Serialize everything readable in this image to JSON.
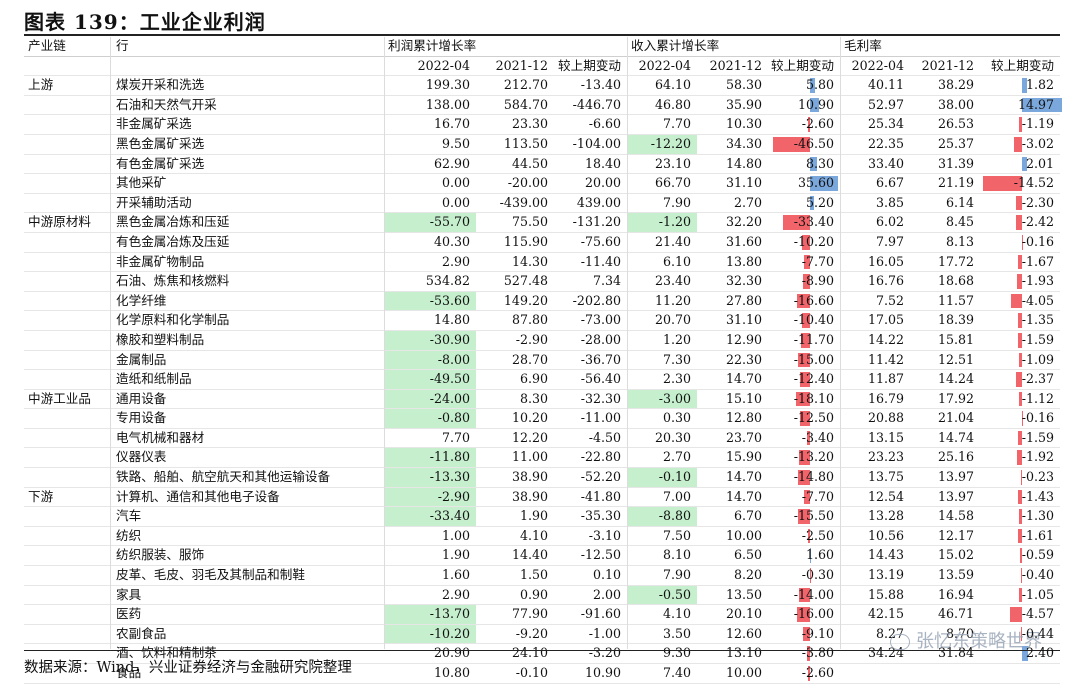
{
  "title": "图表 139：工业企业利润",
  "footer": "数据来源：Wind，兴业证券经济与金融研究院整理",
  "watermark": "张忆东策略世界",
  "colors": {
    "highlight_green": "#c6efce",
    "bar_positive": "#7aa7dc",
    "bar_negative": "#f0646a"
  },
  "header1": {
    "chain": "产业链",
    "industry": "行",
    "profit_group": "利润累计增长率",
    "revenue_group": "收入累计增长率",
    "margin_group": "毛利率"
  },
  "header2": [
    "2022-04",
    "2021-12",
    "较上期变动",
    "2022-04",
    "2021-12",
    "较上期变动",
    "2022-04",
    "2021-12",
    "较上期变动"
  ],
  "rows": [
    {
      "chain": "上游",
      "name": "煤炭开采和洗选",
      "v": [
        "199.30",
        "212.70",
        "-13.40",
        "64.10",
        "58.30",
        "5.80",
        "40.11",
        "38.29",
        "1.82"
      ]
    },
    {
      "chain": "",
      "name": "石油和天然气开采",
      "v": [
        "138.00",
        "584.70",
        "-446.70",
        "46.80",
        "35.90",
        "10.90",
        "52.97",
        "38.00",
        "14.97"
      ]
    },
    {
      "chain": "",
      "name": "非金属矿采选",
      "v": [
        "16.70",
        "23.30",
        "-6.60",
        "7.70",
        "10.30",
        "-2.60",
        "25.34",
        "26.53",
        "-1.19"
      ]
    },
    {
      "chain": "",
      "name": "黑色金属矿采选",
      "v": [
        "9.50",
        "113.50",
        "-104.00",
        "-12.20",
        "34.30",
        "-46.50",
        "22.35",
        "25.37",
        "-3.02"
      ]
    },
    {
      "chain": "",
      "name": "有色金属矿采选",
      "v": [
        "62.90",
        "44.50",
        "18.40",
        "23.10",
        "14.80",
        "8.30",
        "33.40",
        "31.39",
        "2.01"
      ]
    },
    {
      "chain": "",
      "name": "其他采矿",
      "v": [
        "0.00",
        "-20.00",
        "20.00",
        "66.70",
        "31.10",
        "35.60",
        "6.67",
        "21.19",
        "-14.52"
      ]
    },
    {
      "chain": "",
      "name": "开采辅助活动",
      "v": [
        "0.00",
        "-439.00",
        "439.00",
        "7.90",
        "2.70",
        "5.20",
        "3.85",
        "6.14",
        "-2.30"
      ]
    },
    {
      "chain": "中游原材料",
      "name": "黑色金属冶炼和压延",
      "v": [
        "-55.70",
        "75.50",
        "-131.20",
        "-1.20",
        "32.20",
        "-33.40",
        "6.02",
        "8.45",
        "-2.42"
      ]
    },
    {
      "chain": "",
      "name": "有色金属冶炼及压延",
      "v": [
        "40.30",
        "115.90",
        "-75.60",
        "21.40",
        "31.60",
        "-10.20",
        "7.97",
        "8.13",
        "-0.16"
      ]
    },
    {
      "chain": "",
      "name": "非金属矿物制品",
      "v": [
        "2.90",
        "14.30",
        "-11.40",
        "6.10",
        "13.80",
        "-7.70",
        "16.05",
        "17.72",
        "-1.67"
      ]
    },
    {
      "chain": "",
      "name": "石油、炼焦和核燃料",
      "v": [
        "534.82",
        "527.48",
        "7.34",
        "23.40",
        "32.30",
        "-8.90",
        "16.76",
        "18.68",
        "-1.93"
      ]
    },
    {
      "chain": "",
      "name": "化学纤维",
      "v": [
        "-53.60",
        "149.20",
        "-202.80",
        "11.20",
        "27.80",
        "-16.60",
        "7.52",
        "11.57",
        "-4.05"
      ]
    },
    {
      "chain": "",
      "name": "化学原料和化学制品",
      "v": [
        "14.80",
        "87.80",
        "-73.00",
        "20.70",
        "31.10",
        "-10.40",
        "17.05",
        "18.39",
        "-1.35"
      ]
    },
    {
      "chain": "",
      "name": "橡胶和塑料制品",
      "v": [
        "-30.90",
        "-2.90",
        "-28.00",
        "1.20",
        "12.90",
        "-11.70",
        "14.22",
        "15.81",
        "-1.59"
      ]
    },
    {
      "chain": "",
      "name": "金属制品",
      "v": [
        "-8.00",
        "28.70",
        "-36.70",
        "7.30",
        "22.30",
        "-15.00",
        "11.42",
        "12.51",
        "-1.09"
      ]
    },
    {
      "chain": "",
      "name": "造纸和纸制品",
      "v": [
        "-49.50",
        "6.90",
        "-56.40",
        "2.30",
        "14.70",
        "-12.40",
        "11.87",
        "14.24",
        "-2.37"
      ]
    },
    {
      "chain": "中游工业品",
      "name": "通用设备",
      "v": [
        "-24.00",
        "8.30",
        "-32.30",
        "-3.00",
        "15.10",
        "-18.10",
        "16.79",
        "17.92",
        "-1.12"
      ]
    },
    {
      "chain": "",
      "name": "专用设备",
      "v": [
        "-0.80",
        "10.20",
        "-11.00",
        "0.30",
        "12.80",
        "-12.50",
        "20.88",
        "21.04",
        "-0.16"
      ]
    },
    {
      "chain": "",
      "name": "电气机械和器材",
      "v": [
        "7.70",
        "12.20",
        "-4.50",
        "20.30",
        "23.70",
        "-3.40",
        "13.15",
        "14.74",
        "-1.59"
      ]
    },
    {
      "chain": "",
      "name": "仪器仪表",
      "v": [
        "-11.80",
        "11.00",
        "-22.80",
        "2.70",
        "15.90",
        "-13.20",
        "23.23",
        "25.16",
        "-1.92"
      ]
    },
    {
      "chain": "",
      "name": "铁路、船舶、航空航天和其他运输设备",
      "v": [
        "-13.30",
        "38.90",
        "-52.20",
        "-0.10",
        "14.70",
        "-14.80",
        "13.75",
        "13.97",
        "-0.23"
      ]
    },
    {
      "chain": "下游",
      "name": "计算机、通信和其他电子设备",
      "v": [
        "-2.90",
        "38.90",
        "-41.80",
        "7.00",
        "14.70",
        "-7.70",
        "12.54",
        "13.97",
        "-1.43"
      ]
    },
    {
      "chain": "",
      "name": "汽车",
      "v": [
        "-33.40",
        "1.90",
        "-35.30",
        "-8.80",
        "6.70",
        "-15.50",
        "13.28",
        "14.58",
        "-1.30"
      ]
    },
    {
      "chain": "",
      "name": "纺织",
      "v": [
        "1.00",
        "4.10",
        "-3.10",
        "7.50",
        "10.00",
        "-2.50",
        "10.56",
        "12.17",
        "-1.61"
      ]
    },
    {
      "chain": "",
      "name": "纺织服装、服饰",
      "v": [
        "1.90",
        "14.40",
        "-12.50",
        "8.10",
        "6.50",
        "1.60",
        "14.43",
        "15.02",
        "-0.59"
      ]
    },
    {
      "chain": "",
      "name": "皮革、毛皮、羽毛及其制品和制鞋",
      "v": [
        "1.60",
        "1.50",
        "0.10",
        "7.90",
        "8.20",
        "-0.30",
        "13.19",
        "13.59",
        "-0.40"
      ]
    },
    {
      "chain": "",
      "name": "家具",
      "v": [
        "2.90",
        "0.90",
        "2.00",
        "-0.50",
        "13.50",
        "-14.00",
        "15.88",
        "16.94",
        "-1.05"
      ]
    },
    {
      "chain": "",
      "name": "医药",
      "v": [
        "-13.70",
        "77.90",
        "-91.60",
        "4.10",
        "20.10",
        "-16.00",
        "42.15",
        "46.71",
        "-4.57"
      ]
    },
    {
      "chain": "",
      "name": "农副食品",
      "v": [
        "-10.20",
        "-9.20",
        "-1.00",
        "3.50",
        "12.60",
        "-9.10",
        "8.27",
        "8.70",
        "-0.44"
      ]
    },
    {
      "chain": "",
      "name": "酒、饮料和精制茶",
      "v": [
        "20.90",
        "24.10",
        "-3.20",
        "9.30",
        "13.10",
        "-3.80",
        "34.24",
        "31.84",
        "2.40"
      ]
    },
    {
      "chain": "",
      "name": "食品",
      "v": [
        "10.80",
        "-0.10",
        "10.90",
        "7.40",
        "10.00",
        "-2.60",
        "",
        "",
        ""
      ]
    }
  ]
}
